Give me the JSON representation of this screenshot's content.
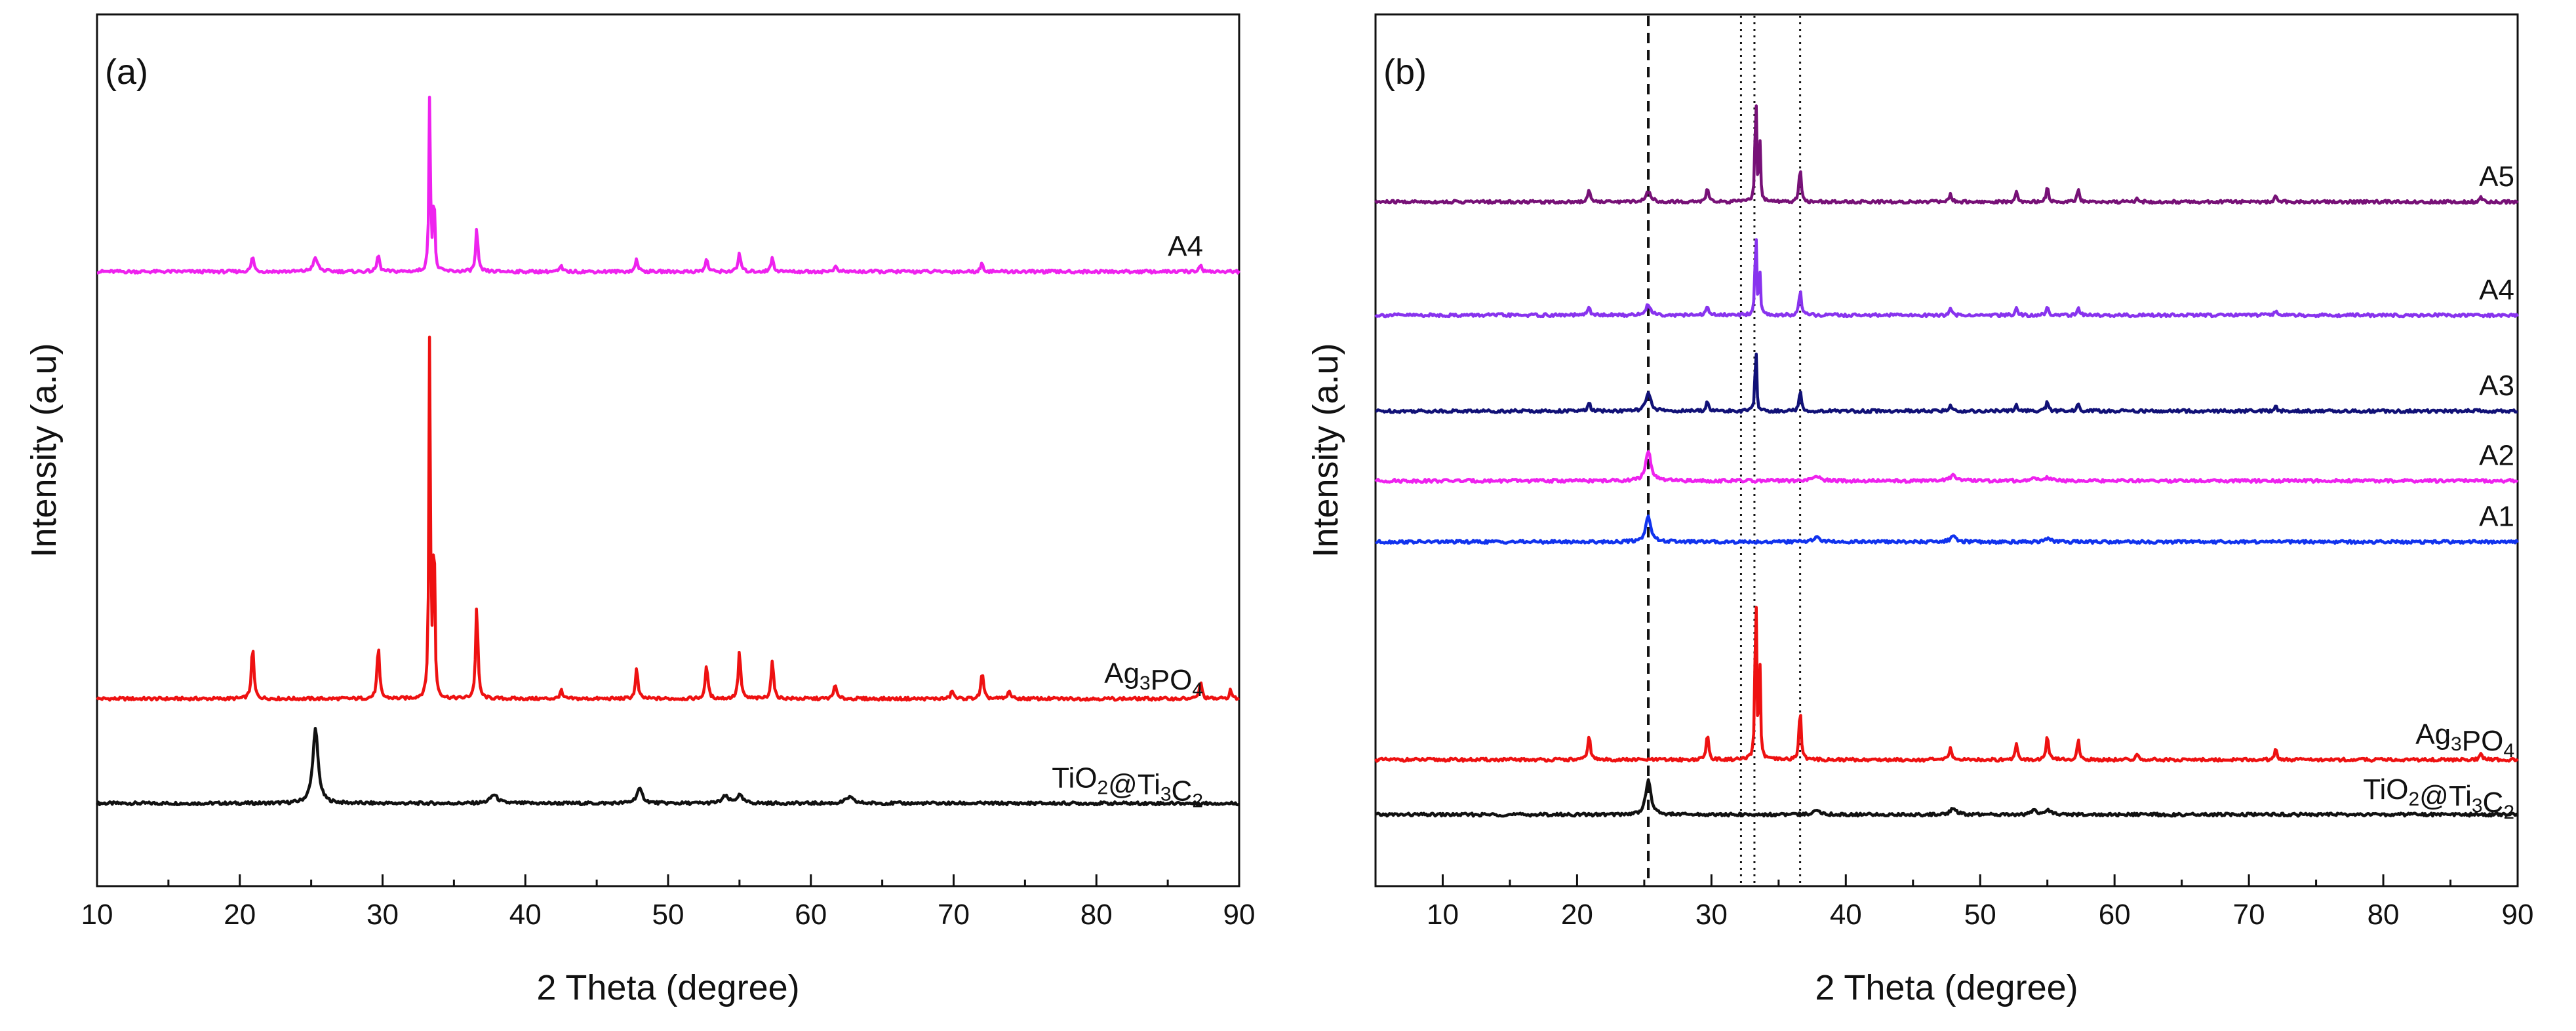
{
  "chart_data": [
    {
      "panel": "(a)",
      "type": "line",
      "xlabel": "2 Theta (degree)",
      "ylabel": "Intensity (a.u)",
      "xlim": [
        10,
        90
      ],
      "xticks": [
        10,
        20,
        30,
        40,
        50,
        60,
        70,
        80,
        90
      ],
      "yticks_shown": false,
      "grid": false,
      "series": [
        {
          "name": "TiO2@Ti3C2",
          "label_parts": [
            [
              "TiO",
              false
            ],
            [
              "2",
              true
            ],
            [
              "@Ti",
              false
            ],
            [
              "3",
              true
            ],
            [
              "C",
              false
            ],
            [
              "2",
              true
            ]
          ],
          "color": "#111111",
          "offset": 0.095,
          "peaks": [
            [
              25.3,
              0.085,
              0.45
            ],
            [
              37.8,
              0.01,
              0.6
            ],
            [
              48.0,
              0.016,
              0.5
            ],
            [
              54.0,
              0.008,
              0.5
            ],
            [
              55.0,
              0.009,
              0.5
            ],
            [
              62.7,
              0.007,
              0.6
            ]
          ]
        },
        {
          "name": "Ag3PO4",
          "label_parts": [
            [
              "Ag",
              false
            ],
            [
              "3",
              true
            ],
            [
              "PO",
              false
            ],
            [
              "4",
              true
            ]
          ],
          "color": "#ee1111",
          "offset": 0.215,
          "peaks": [
            [
              20.9,
              0.06,
              0.2
            ],
            [
              29.7,
              0.06,
              0.2
            ],
            [
              33.3,
              0.42,
              0.12
            ],
            [
              33.6,
              0.22,
              0.12
            ],
            [
              36.6,
              0.11,
              0.18
            ],
            [
              42.5,
              0.01,
              0.2
            ],
            [
              47.8,
              0.035,
              0.2
            ],
            [
              52.7,
              0.04,
              0.2
            ],
            [
              55.0,
              0.055,
              0.2
            ],
            [
              57.3,
              0.045,
              0.2
            ],
            [
              61.7,
              0.018,
              0.2
            ],
            [
              69.9,
              0.01,
              0.2
            ],
            [
              72.0,
              0.03,
              0.2
            ],
            [
              73.9,
              0.01,
              0.2
            ],
            [
              87.3,
              0.02,
              0.2
            ],
            [
              89.4,
              0.01,
              0.2
            ]
          ]
        },
        {
          "name": "A4",
          "label_parts": [
            [
              "A4",
              false
            ]
          ],
          "color": "#ee22ee",
          "offset": 0.705,
          "peaks": [
            [
              20.9,
              0.018,
              0.2
            ],
            [
              25.3,
              0.015,
              0.4
            ],
            [
              29.7,
              0.02,
              0.2
            ],
            [
              33.3,
              0.205,
              0.12
            ],
            [
              33.6,
              0.1,
              0.12
            ],
            [
              36.6,
              0.05,
              0.18
            ],
            [
              42.5,
              0.006,
              0.2
            ],
            [
              47.8,
              0.015,
              0.2
            ],
            [
              52.7,
              0.015,
              0.2
            ],
            [
              55.0,
              0.022,
              0.2
            ],
            [
              57.3,
              0.017,
              0.2
            ],
            [
              61.7,
              0.007,
              0.2
            ],
            [
              72.0,
              0.01,
              0.2
            ],
            [
              87.3,
              0.008,
              0.2
            ]
          ]
        }
      ]
    },
    {
      "panel": "(b)",
      "type": "line",
      "xlabel": "2 Theta (degree)",
      "ylabel": "Intensity (a.u)",
      "xlim": [
        5,
        90
      ],
      "xticks": [
        10,
        20,
        30,
        40,
        50,
        60,
        70,
        80,
        90
      ],
      "yticks_shown": false,
      "grid": false,
      "reference_lines": [
        {
          "x": 25.3,
          "style": "dashed"
        },
        {
          "x": 32.2,
          "style": "dotted"
        },
        {
          "x": 33.2,
          "style": "dotted"
        },
        {
          "x": 36.6,
          "style": "dotted"
        }
      ],
      "series": [
        {
          "name": "TiO2@Ti3C2",
          "label_parts": [
            [
              "TiO",
              false
            ],
            [
              "2",
              true
            ],
            [
              "@Ti",
              false
            ],
            [
              "3",
              true
            ],
            [
              "C",
              false
            ],
            [
              "2",
              true
            ]
          ],
          "color": "#111111",
          "offset": 0.082,
          "peaks": [
            [
              25.3,
              0.04,
              0.45
            ],
            [
              37.8,
              0.006,
              0.6
            ],
            [
              48.0,
              0.008,
              0.5
            ],
            [
              54.0,
              0.005,
              0.5
            ],
            [
              55.0,
              0.005,
              0.5
            ]
          ]
        },
        {
          "name": "Ag3PO4",
          "label_parts": [
            [
              "Ag",
              false
            ],
            [
              "3",
              true
            ],
            [
              "PO",
              false
            ],
            [
              "4",
              true
            ]
          ],
          "color": "#ee1111",
          "offset": 0.145,
          "peaks": [
            [
              20.9,
              0.03,
              0.2
            ],
            [
              29.7,
              0.03,
              0.2
            ],
            [
              33.3,
              0.22,
              0.12
            ],
            [
              33.6,
              0.11,
              0.12
            ],
            [
              36.6,
              0.06,
              0.18
            ],
            [
              47.8,
              0.016,
              0.2
            ],
            [
              52.7,
              0.02,
              0.2
            ],
            [
              55.0,
              0.028,
              0.2
            ],
            [
              57.3,
              0.022,
              0.2
            ],
            [
              61.7,
              0.008,
              0.2
            ],
            [
              72.0,
              0.012,
              0.2
            ],
            [
              87.3,
              0.008,
              0.2
            ]
          ]
        },
        {
          "name": "A1",
          "label_parts": [
            [
              "A1",
              false
            ]
          ],
          "color": "#1133ee",
          "offset": 0.395,
          "peaks": [
            [
              25.3,
              0.03,
              0.45
            ],
            [
              37.8,
              0.005,
              0.6
            ],
            [
              48.0,
              0.006,
              0.5
            ],
            [
              55.0,
              0.004,
              0.5
            ]
          ]
        },
        {
          "name": "A2",
          "label_parts": [
            [
              "A2",
              false
            ]
          ],
          "color": "#ee22ee",
          "offset": 0.465,
          "peaks": [
            [
              25.3,
              0.035,
              0.45
            ],
            [
              37.8,
              0.005,
              0.6
            ],
            [
              48.0,
              0.007,
              0.5
            ],
            [
              54.0,
              0.004,
              0.5
            ],
            [
              55.0,
              0.004,
              0.5
            ]
          ]
        },
        {
          "name": "A3",
          "label_parts": [
            [
              "A3",
              false
            ]
          ],
          "color": "#111177",
          "offset": 0.545,
          "peaks": [
            [
              20.9,
              0.01,
              0.2
            ],
            [
              25.3,
              0.02,
              0.45
            ],
            [
              29.7,
              0.012,
              0.2
            ],
            [
              33.3,
              0.085,
              0.12
            ],
            [
              36.6,
              0.025,
              0.18
            ],
            [
              47.8,
              0.008,
              0.2
            ],
            [
              52.7,
              0.008,
              0.2
            ],
            [
              55.0,
              0.012,
              0.2
            ],
            [
              57.3,
              0.009,
              0.2
            ],
            [
              72.0,
              0.005,
              0.2
            ]
          ]
        },
        {
          "name": "A4",
          "label_parts": [
            [
              "A4",
              false
            ]
          ],
          "color": "#8833ee",
          "offset": 0.655,
          "peaks": [
            [
              20.9,
              0.01,
              0.2
            ],
            [
              25.3,
              0.012,
              0.45
            ],
            [
              29.7,
              0.012,
              0.2
            ],
            [
              33.3,
              0.11,
              0.12
            ],
            [
              33.6,
              0.05,
              0.12
            ],
            [
              36.6,
              0.03,
              0.18
            ],
            [
              47.8,
              0.007,
              0.2
            ],
            [
              52.7,
              0.008,
              0.2
            ],
            [
              55.0,
              0.012,
              0.2
            ],
            [
              57.3,
              0.009,
              0.2
            ],
            [
              72.0,
              0.005,
              0.2
            ]
          ]
        },
        {
          "name": "A5",
          "label_parts": [
            [
              "A5",
              false
            ]
          ],
          "color": "#771177",
          "offset": 0.785,
          "peaks": [
            [
              20.9,
              0.016,
              0.2
            ],
            [
              25.3,
              0.012,
              0.45
            ],
            [
              29.7,
              0.017,
              0.2
            ],
            [
              33.3,
              0.14,
              0.12
            ],
            [
              33.6,
              0.07,
              0.12
            ],
            [
              36.6,
              0.04,
              0.18
            ],
            [
              47.8,
              0.01,
              0.2
            ],
            [
              52.7,
              0.012,
              0.2
            ],
            [
              55.0,
              0.017,
              0.2
            ],
            [
              57.3,
              0.013,
              0.2
            ],
            [
              61.7,
              0.005,
              0.2
            ],
            [
              72.0,
              0.006,
              0.2
            ],
            [
              87.3,
              0.005,
              0.2
            ]
          ]
        }
      ]
    }
  ]
}
